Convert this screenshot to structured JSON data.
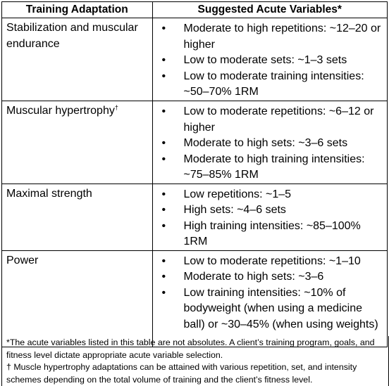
{
  "table": {
    "headers": [
      "Training Adaptation",
      "Suggested Acute Variables*"
    ],
    "rows": [
      {
        "adaptation": "Stabilization and muscular endurance",
        "adaptation_mark": "",
        "items": [
          "Moderate to high repetitions:  ~12–20 or higher",
          "Low to moderate sets: ~1–3 sets",
          "Low to moderate training intensities: ~50–70% 1RM"
        ]
      },
      {
        "adaptation": "Muscular hypertrophy",
        "adaptation_mark": "†",
        "items": [
          "Low to moderate repetitions: ~6–12 or higher",
          "Moderate to high sets: ~3–6 sets",
          "Moderate to high training intensities: ~75–85% 1RM"
        ]
      },
      {
        "adaptation": "Maximal strength",
        "adaptation_mark": "",
        "items": [
          "Low repetitions: ~1–5",
          "High sets: ~4–6 sets",
          "High training intensities: ~85–100% 1RM"
        ]
      },
      {
        "adaptation": "Power",
        "adaptation_mark": "",
        "items": [
          "Low to moderate repetitions: ~1–10",
          "Moderate to high sets: ~3–6",
          "Low training intensities: ~10% of bodyweight (when using a medicine ball) or ~30–45% (when using weights)"
        ]
      }
    ]
  },
  "bullet_char": "•",
  "footnotes": [
    "*The acute variables listed in this table are not absolutes. A client’s training program, goals, and fitness level dictate appropriate acute variable selection.",
    "† Muscle hypertrophy adaptations can be attained with various repetition, set, and intensity schemes depending on the total volume of training and the client’s fitness level."
  ]
}
